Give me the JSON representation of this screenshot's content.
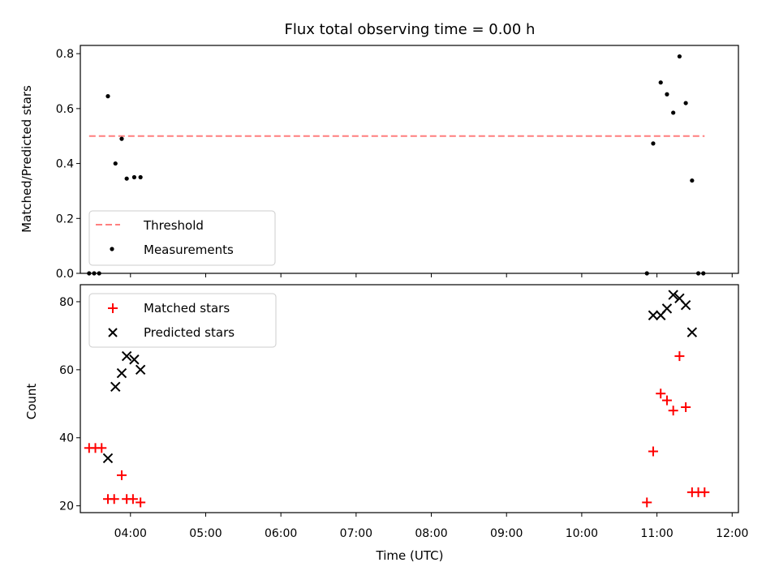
{
  "chart_data": [
    {
      "type": "scatter",
      "title": "Flux total observing time = 0.00 h",
      "xlabel": "",
      "ylabel": "Matched/Predicted stars",
      "xlim": [
        "03:20",
        "12:05"
      ],
      "ylim": [
        0,
        0.83
      ],
      "grid": false,
      "legend_position": "lower-left",
      "yticks": [
        "0.0",
        "0.2",
        "0.4",
        "0.6",
        "0.8"
      ],
      "xticks": [
        "04:00",
        "05:00",
        "06:00",
        "07:00",
        "08:00",
        "09:00",
        "10:00",
        "11:00",
        "12:00"
      ],
      "threshold": {
        "name": "Threshold",
        "value": 0.5,
        "x_start": "03:27",
        "x_end": "11:38",
        "color": "#ff7f7f",
        "style": "dashed"
      },
      "series": [
        {
          "name": "Measurements",
          "marker": "dot",
          "color": "#000000",
          "points": [
            [
              "03:27",
              0.0
            ],
            [
              "03:31",
              0.0
            ],
            [
              "03:35",
              0.0
            ],
            [
              "03:42",
              0.645
            ],
            [
              "03:48",
              0.4
            ],
            [
              "03:53",
              0.49
            ],
            [
              "03:57",
              0.345
            ],
            [
              "04:03",
              0.35
            ],
            [
              "04:08",
              0.35
            ],
            [
              "10:52",
              0.0
            ],
            [
              "10:57",
              0.473
            ],
            [
              "11:03",
              0.695
            ],
            [
              "11:08",
              0.652
            ],
            [
              "11:13",
              0.585
            ],
            [
              "11:18",
              0.79
            ],
            [
              "11:23",
              0.62
            ],
            [
              "11:28",
              0.338
            ],
            [
              "11:33",
              0.0
            ],
            [
              "11:37",
              0.0
            ]
          ]
        }
      ]
    },
    {
      "type": "scatter",
      "title": "",
      "xlabel": "Time (UTC)",
      "ylabel": "Count",
      "xlim": [
        "03:20",
        "12:05"
      ],
      "ylim": [
        18,
        85
      ],
      "grid": false,
      "legend_position": "top-left",
      "yticks": [
        "20",
        "40",
        "60",
        "80"
      ],
      "xticks": [
        "04:00",
        "05:00",
        "06:00",
        "07:00",
        "08:00",
        "09:00",
        "10:00",
        "11:00",
        "12:00"
      ],
      "series": [
        {
          "name": "Matched stars",
          "marker": "plus",
          "color": "#ff0000",
          "points": [
            [
              "03:27",
              37
            ],
            [
              "03:32",
              37
            ],
            [
              "03:37",
              37
            ],
            [
              "03:42",
              22
            ],
            [
              "03:47",
              22
            ],
            [
              "03:53",
              29
            ],
            [
              "03:57",
              22
            ],
            [
              "04:02",
              22
            ],
            [
              "04:08",
              21
            ],
            [
              "10:52",
              21
            ],
            [
              "10:57",
              36
            ],
            [
              "11:03",
              53
            ],
            [
              "11:08",
              51
            ],
            [
              "11:13",
              48
            ],
            [
              "11:18",
              64
            ],
            [
              "11:23",
              49
            ],
            [
              "11:28",
              24
            ],
            [
              "11:33",
              24
            ],
            [
              "11:38",
              24
            ]
          ]
        },
        {
          "name": "Predicted stars",
          "marker": "x",
          "color": "#000000",
          "points": [
            [
              "03:42",
              34
            ],
            [
              "03:48",
              55
            ],
            [
              "03:53",
              59
            ],
            [
              "03:57",
              64
            ],
            [
              "04:03",
              63
            ],
            [
              "04:08",
              60
            ],
            [
              "10:57",
              76
            ],
            [
              "11:03",
              76
            ],
            [
              "11:08",
              78
            ],
            [
              "11:13",
              82
            ],
            [
              "11:18",
              81
            ],
            [
              "11:23",
              79
            ],
            [
              "11:28",
              71
            ]
          ]
        }
      ]
    }
  ]
}
